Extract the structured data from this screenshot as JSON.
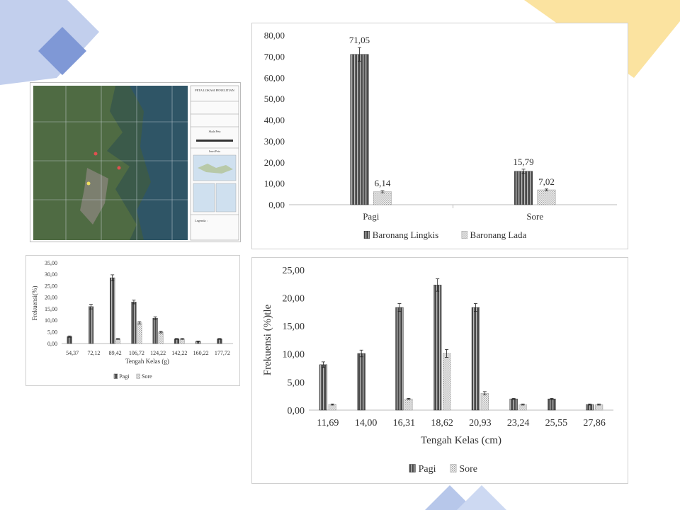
{
  "chart_data": [
    {
      "id": "top",
      "type": "bar",
      "categories": [
        "Pagi",
        "Sore"
      ],
      "series": [
        {
          "name": "Baronang Lingkis",
          "values": [
            71.05,
            15.79
          ],
          "errors": [
            3.2,
            1.0
          ]
        },
        {
          "name": "Baronang Lada",
          "values": [
            6.14,
            7.02
          ],
          "errors": [
            0.5,
            0.4
          ]
        }
      ],
      "data_labels": [
        "71,05",
        "6,14",
        "15,79",
        "7,02"
      ],
      "ylim": [
        0,
        80
      ],
      "yticks": [
        "0,00",
        "10,00",
        "20,00",
        "30,00",
        "40,00",
        "50,00",
        "60,00",
        "70,00",
        "80,00"
      ],
      "legend": "bottom",
      "grid": false
    },
    {
      "id": "small",
      "type": "bar",
      "categories": [
        "54,37",
        "72,12",
        "89,42",
        "106,72",
        "124,22",
        "142,22",
        "160,22",
        "177,72"
      ],
      "series": [
        {
          "name": "Pagi",
          "values": [
            3,
            16,
            28.5,
            18,
            11,
            2,
            1,
            2
          ],
          "errors": [
            0.3,
            1.0,
            1.3,
            0.8,
            0.6,
            0.2,
            0.1,
            0.2
          ]
        },
        {
          "name": "Sore",
          "values": [
            0,
            0,
            2,
            9,
            5,
            2,
            0,
            0
          ],
          "errors": [
            0,
            0,
            0.2,
            0.5,
            0.4,
            0.2,
            0,
            0
          ]
        }
      ],
      "xlabel": "Tengah Kelas (g)",
      "ylabel": "Frekuensi(%)",
      "ylim": [
        0,
        35
      ],
      "yticks": [
        "0,00",
        "5,00",
        "10,00",
        "15,00",
        "20,00",
        "25,00",
        "30,00",
        "35,00"
      ],
      "legend": "bottom",
      "grid": false
    },
    {
      "id": "large",
      "type": "bar",
      "categories": [
        "11,69",
        "14,00",
        "16,31",
        "18,62",
        "20,93",
        "23,24",
        "25,55",
        "27,86"
      ],
      "series": [
        {
          "name": "Pagi",
          "values": [
            8.1,
            10.1,
            18.3,
            22.3,
            18.3,
            2,
            2,
            1
          ],
          "errors": [
            0.5,
            0.6,
            0.7,
            1.1,
            0.7,
            0.1,
            0.1,
            0.1
          ]
        },
        {
          "name": "Sore",
          "values": [
            1,
            0,
            2,
            10.1,
            3,
            1,
            0,
            1
          ],
          "errors": [
            0.1,
            0,
            0.1,
            0.7,
            0.3,
            0.1,
            0,
            0.1
          ]
        }
      ],
      "xlabel": "Tengah Kelas (cm)",
      "ylabel": "Frekuensi (%)tle",
      "ylim": [
        0,
        25
      ],
      "yticks": [
        "0,00",
        "5,00",
        "10,00",
        "15,00",
        "20,00",
        "25,00"
      ],
      "legend": "bottom",
      "grid": false
    }
  ],
  "map": {
    "title": "PETA LOKASI PENELITIAN",
    "scale_label": "Skala Peta",
    "inset_label": "Inset Peta",
    "legend_title": "Legenda :"
  },
  "colors": {
    "bar_dark": "#4a4a4a",
    "bar_light": "#d9d9d9",
    "deco_blue": "#8fa8dc",
    "deco_yellow": "#fbe3a0"
  }
}
